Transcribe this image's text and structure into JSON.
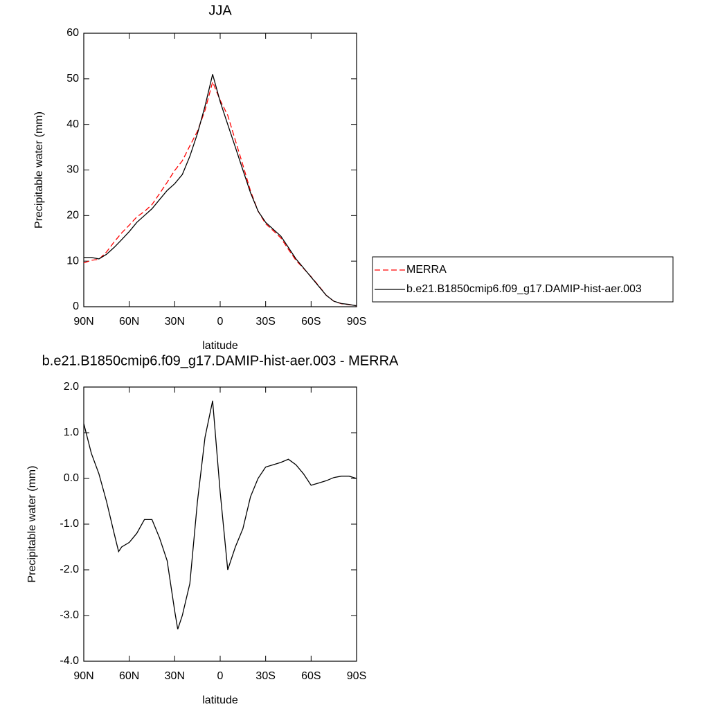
{
  "chart_data": [
    {
      "type": "line",
      "title": "JJA",
      "xlabel": "latitude",
      "ylabel": "Precipitable water (mm)",
      "x": [
        90,
        85,
        80,
        75,
        70,
        65,
        60,
        55,
        50,
        45,
        40,
        35,
        30,
        25,
        20,
        15,
        10,
        5,
        0,
        -5,
        -10,
        -15,
        -20,
        -25,
        -30,
        -35,
        -40,
        -45,
        -50,
        -55,
        -60,
        -65,
        -70,
        -75,
        -80,
        -85,
        -90
      ],
      "xlim": [
        90,
        -90
      ],
      "xticks": [
        {
          "value": 90,
          "label": "90N"
        },
        {
          "value": 60,
          "label": "60N"
        },
        {
          "value": 30,
          "label": "30N"
        },
        0,
        {
          "value": -30,
          "label": "30S"
        },
        {
          "value": -60,
          "label": "60S"
        },
        {
          "value": -90,
          "label": "90S"
        }
      ],
      "ylim": [
        0,
        60
      ],
      "yticks": [
        0,
        10,
        20,
        30,
        40,
        50,
        60
      ],
      "legend": "right",
      "series": [
        {
          "name": "MERRA",
          "color": "#ff0000",
          "dashed": true,
          "values": [
            9.6,
            10.2,
            10.4,
            12,
            14.2,
            16.2,
            17.9,
            19.7,
            20.9,
            22.4,
            24.8,
            27.3,
            29.9,
            32,
            35.3,
            38.5,
            43.1,
            49.3,
            45.3,
            42,
            36.5,
            31.1,
            25.4,
            21,
            18.2,
            16.7,
            15.1,
            12.6,
            10.2,
            8.4,
            6.6,
            4.6,
            2.5,
            1.2,
            0.65,
            0.45,
            0.2
          ]
        },
        {
          "name": "b.e21.B1850cmip6.f09_g17.DAMIP-hist-aer.003",
          "color": "#000000",
          "dashed": false,
          "values": [
            10.8,
            10.8,
            10.5,
            11.5,
            13,
            14.7,
            16.5,
            18.5,
            20,
            21.5,
            23.5,
            25.5,
            27,
            29,
            33,
            38,
            44,
            51,
            45,
            40,
            35,
            30,
            25,
            21,
            18.5,
            17,
            15.5,
            13,
            10.5,
            8.5,
            6.5,
            4.5,
            2.5,
            1.2,
            0.7,
            0.5,
            0.2
          ]
        }
      ]
    },
    {
      "type": "line",
      "title": "b.e21.B1850cmip6.f09_g17.DAMIP-hist-aer.003 - MERRA",
      "xlabel": "latitude",
      "ylabel": "Precipitable water (mm)",
      "x": [
        90,
        85,
        80,
        75,
        70,
        67,
        65,
        60,
        55,
        50,
        45,
        40,
        35,
        30,
        28,
        25,
        20,
        15,
        10,
        5,
        0,
        -5,
        -10,
        -15,
        -20,
        -25,
        -30,
        -35,
        -40,
        -45,
        -50,
        -55,
        -60,
        -65,
        -70,
        -75,
        -80,
        -85,
        -90
      ],
      "xlim": [
        90,
        -90
      ],
      "xticks": [
        {
          "value": 90,
          "label": "90N"
        },
        {
          "value": 60,
          "label": "60N"
        },
        {
          "value": 30,
          "label": "30N"
        },
        0,
        {
          "value": -30,
          "label": "30S"
        },
        {
          "value": -60,
          "label": "60S"
        },
        {
          "value": -90,
          "label": "90S"
        }
      ],
      "ylim": [
        -4,
        2
      ],
      "yticks": [
        {
          "value": -4,
          "label": "-4.0"
        },
        {
          "value": -3,
          "label": "-3.0"
        },
        {
          "value": -2,
          "label": "-2.0"
        },
        {
          "value": -1,
          "label": "-1.0"
        },
        {
          "value": 0,
          "label": "0.0"
        },
        {
          "value": 1,
          "label": "1.0"
        },
        {
          "value": 2,
          "label": "2.0"
        }
      ],
      "series": [
        {
          "color": "#000000",
          "dashed": false,
          "values": [
            1.2,
            0.55,
            0.1,
            -0.5,
            -1.2,
            -1.6,
            -1.5,
            -1.4,
            -1.2,
            -0.9,
            -0.9,
            -1.3,
            -1.8,
            -2.9,
            -3.3,
            -3.0,
            -2.3,
            -0.5,
            0.9,
            1.7,
            -0.3,
            -2.0,
            -1.5,
            -1.1,
            -0.4,
            0.0,
            0.25,
            0.3,
            0.35,
            0.42,
            0.3,
            0.1,
            -0.15,
            -0.1,
            -0.05,
            0.02,
            0.05,
            0.05,
            0.0
          ]
        }
      ]
    }
  ]
}
